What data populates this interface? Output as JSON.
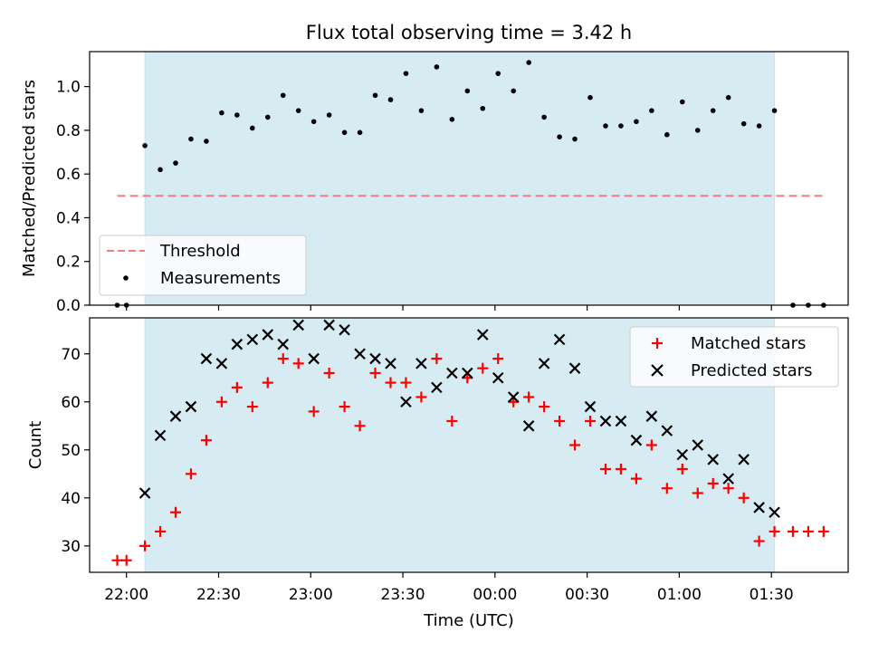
{
  "chart_data": [
    {
      "type": "scatter",
      "title": "Flux total observing time = 3.42 h",
      "ylabel": "Matched/Predicted stars",
      "xlabel": "",
      "ylim": [
        0,
        1.16
      ],
      "yticks": [
        "0.0",
        "0.2",
        "0.4",
        "0.6",
        "0.8",
        "1.0"
      ],
      "grid": false,
      "legend_position": "lower-left",
      "threshold": {
        "name": "Threshold",
        "value": 0.5,
        "x_range": [
          "21:57",
          "01:47"
        ],
        "color": "#f08080"
      },
      "shaded_span": {
        "from": "22:06",
        "to": "01:31",
        "color": "#add8e6"
      },
      "series": [
        {
          "name": "Measurements",
          "marker": "dot",
          "color": "#000000",
          "x": [
            "21:57",
            "22:00",
            "22:06",
            "22:11",
            "22:16",
            "22:21",
            "22:26",
            "22:31",
            "22:36",
            "22:41",
            "22:46",
            "22:51",
            "22:56",
            "23:01",
            "23:06",
            "23:11",
            "23:16",
            "23:21",
            "23:26",
            "23:31",
            "23:36",
            "23:41",
            "23:46",
            "23:51",
            "23:56",
            "00:01",
            "00:06",
            "00:11",
            "00:16",
            "00:21",
            "00:26",
            "00:31",
            "00:36",
            "00:41",
            "00:46",
            "00:51",
            "00:56",
            "01:01",
            "01:06",
            "01:11",
            "01:16",
            "01:21",
            "01:26",
            "01:31",
            "01:37",
            "01:42",
            "01:47"
          ],
          "y": [
            0.0,
            0.0,
            0.73,
            0.62,
            0.65,
            0.76,
            0.75,
            0.88,
            0.87,
            0.81,
            0.86,
            0.96,
            0.89,
            0.84,
            0.87,
            0.79,
            0.79,
            0.96,
            0.94,
            1.06,
            0.89,
            1.09,
            0.85,
            0.98,
            0.9,
            1.06,
            0.98,
            1.11,
            0.86,
            0.77,
            0.76,
            0.95,
            0.82,
            0.82,
            0.84,
            0.89,
            0.78,
            0.93,
            0.8,
            0.89,
            0.95,
            0.83,
            0.82,
            0.89,
            0.0,
            0.0,
            0.0
          ]
        }
      ]
    },
    {
      "type": "scatter",
      "title": "",
      "ylabel": "Count",
      "xlabel": "Time (UTC)",
      "ylim": [
        24.5,
        77.5
      ],
      "yticks": [
        "30",
        "40",
        "50",
        "60",
        "70"
      ],
      "xlim": [
        "21:48",
        "01:55"
      ],
      "xticks": [
        "22:00",
        "22:30",
        "23:00",
        "23:30",
        "00:00",
        "00:30",
        "01:00",
        "01:30"
      ],
      "grid": false,
      "legend_position": "upper-right",
      "shaded_span": {
        "from": "22:06",
        "to": "01:31",
        "color": "#add8e6"
      },
      "series": [
        {
          "name": "Matched stars",
          "marker": "plus",
          "color": "#ff0000",
          "x": [
            "21:57",
            "22:00",
            "22:06",
            "22:11",
            "22:16",
            "22:21",
            "22:26",
            "22:31",
            "22:36",
            "22:41",
            "22:46",
            "22:51",
            "22:56",
            "23:01",
            "23:06",
            "23:11",
            "23:16",
            "23:21",
            "23:26",
            "23:31",
            "23:36",
            "23:41",
            "23:46",
            "23:51",
            "23:56",
            "00:01",
            "00:06",
            "00:11",
            "00:16",
            "00:21",
            "00:26",
            "00:31",
            "00:36",
            "00:41",
            "00:46",
            "00:51",
            "00:56",
            "01:01",
            "01:06",
            "01:11",
            "01:16",
            "01:21",
            "01:26",
            "01:31",
            "01:37",
            "01:42",
            "01:47"
          ],
          "y": [
            27,
            27,
            30,
            33,
            37,
            45,
            52,
            60,
            63,
            59,
            64,
            69,
            68,
            58,
            66,
            59,
            55,
            66,
            64,
            64,
            61,
            69,
            56,
            65,
            67,
            69,
            60,
            61,
            59,
            56,
            51,
            56,
            46,
            46,
            44,
            51,
            42,
            46,
            41,
            43,
            42,
            40,
            31,
            33,
            33,
            33,
            33
          ]
        },
        {
          "name": "Predicted stars",
          "marker": "x",
          "color": "#000000",
          "x": [
            "22:06",
            "22:11",
            "22:16",
            "22:21",
            "22:26",
            "22:31",
            "22:36",
            "22:41",
            "22:46",
            "22:51",
            "22:56",
            "23:01",
            "23:06",
            "23:11",
            "23:16",
            "23:21",
            "23:26",
            "23:31",
            "23:36",
            "23:41",
            "23:46",
            "23:51",
            "23:56",
            "00:01",
            "00:06",
            "00:11",
            "00:16",
            "00:21",
            "00:26",
            "00:31",
            "00:36",
            "00:41",
            "00:46",
            "00:51",
            "00:56",
            "01:01",
            "01:06",
            "01:11",
            "01:16",
            "01:21",
            "01:26",
            "01:31"
          ],
          "y": [
            41,
            53,
            57,
            59,
            69,
            68,
            72,
            73,
            74,
            72,
            76,
            69,
            76,
            75,
            70,
            69,
            68,
            60,
            68,
            63,
            66,
            66,
            74,
            65,
            61,
            55,
            68,
            73,
            67,
            59,
            56,
            56,
            52,
            57,
            54,
            49,
            51,
            48,
            44,
            48,
            38,
            37
          ]
        }
      ]
    }
  ]
}
